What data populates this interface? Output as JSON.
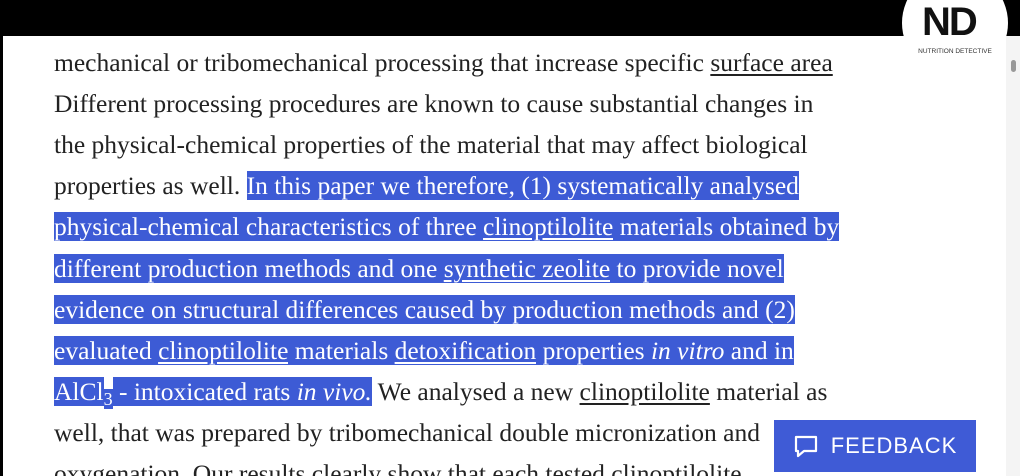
{
  "logo": {
    "mark": "ND",
    "caption": "NUTRITION DETECTIVE"
  },
  "feedback": {
    "label": "FEEDBACK"
  },
  "document": {
    "lines": [
      {
        "segments": [
          {
            "text": "mechanical or tribomechanical processing that increase specific "
          },
          {
            "text": "surface area",
            "link": true
          }
        ]
      },
      {
        "segments": [
          {
            "text": "Different processing procedures are known to cause substantial changes in"
          }
        ]
      },
      {
        "segments": [
          {
            "text": "the physical-chemical properties of the material that may affect biological"
          }
        ]
      },
      {
        "segments": [
          {
            "text": "properties as well. "
          },
          {
            "text": "In this paper we therefore, (1) systematically analysed",
            "selected": true
          }
        ]
      },
      {
        "segments": [
          {
            "text": "physical-chemical characteristics of three ",
            "selected": true
          },
          {
            "text": "clinoptilolite",
            "link": true,
            "selected": true
          },
          {
            "text": " materials obtained by",
            "selected": true
          }
        ]
      },
      {
        "segments": [
          {
            "text": "different production methods and one ",
            "selected": true
          },
          {
            "text": "synthetic zeolite",
            "link": true,
            "selected": true
          },
          {
            "text": " to provide novel",
            "selected": true
          }
        ]
      },
      {
        "segments": [
          {
            "text": "evidence on structural differences caused by production methods and (2)",
            "selected": true
          }
        ]
      },
      {
        "segments": [
          {
            "text": "evaluated ",
            "selected": true
          },
          {
            "text": "clinoptilolite",
            "link": true,
            "selected": true
          },
          {
            "text": " materials ",
            "selected": true
          },
          {
            "text": "detoxification",
            "link": true,
            "selected": true
          },
          {
            "text": " properties ",
            "selected": true
          },
          {
            "text": "in vitro",
            "italic": true,
            "selected": true
          },
          {
            "text": " and in",
            "selected": true
          }
        ]
      },
      {
        "segments": [
          {
            "text": "AlCl",
            "selected": true
          },
          {
            "text": "3",
            "sub": true,
            "selected": true
          },
          {
            "text": " - intoxicated rats ",
            "selected": true
          },
          {
            "text": "in vivo.",
            "italic": true,
            "selected": true
          },
          {
            "text": " We analysed a new "
          },
          {
            "text": "clinoptilolite",
            "link": true
          },
          {
            "text": " material as"
          }
        ]
      },
      {
        "segments": [
          {
            "text": "well, that was prepared by tribomechanical double micronization and"
          }
        ]
      },
      {
        "segments": [
          {
            "text": "oxygenation. Our results clearly show that each tested clinoptilolite"
          }
        ]
      }
    ]
  }
}
